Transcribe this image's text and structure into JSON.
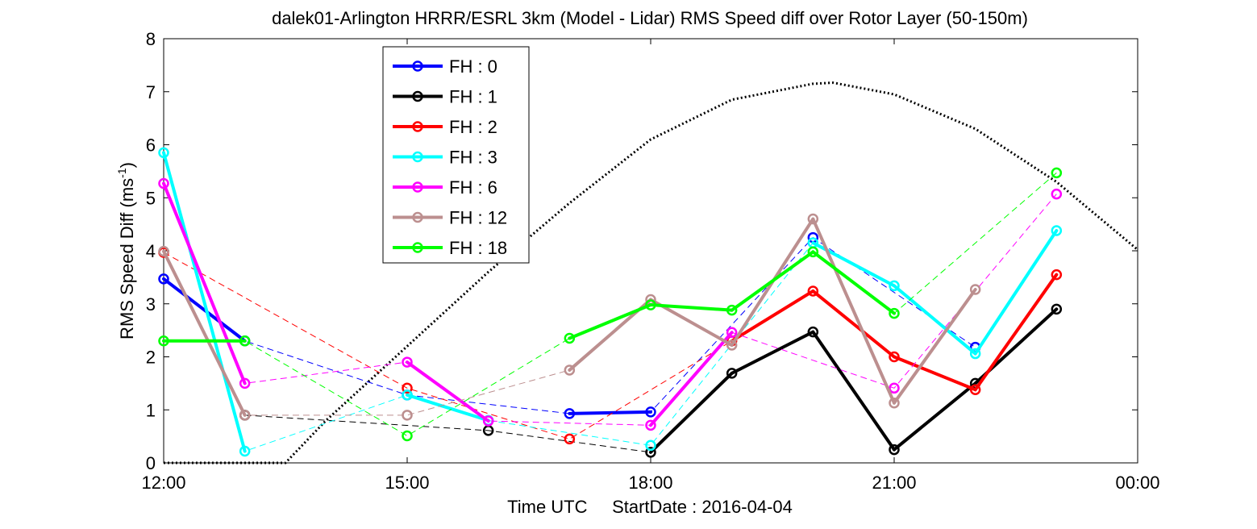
{
  "chart_data": {
    "type": "line",
    "title": "dalek01-Arlington HRRR/ESRL 3km (Model - Lidar) RMS Speed diff over Rotor Layer (50-150m)",
    "xlabel": "Time UTC     StartDate : 2016-04-04",
    "ylabel_main": "RMS Speed Diff (ms",
    "ylabel_sup": "-1",
    "ylabel_close": ")",
    "xlim_hours": [
      12,
      24
    ],
    "ylim": [
      0,
      8
    ],
    "xticks": [
      {
        "hour": 12,
        "label": "12:00"
      },
      {
        "hour": 15,
        "label": "15:00"
      },
      {
        "hour": 18,
        "label": "18:00"
      },
      {
        "hour": 21,
        "label": "21:00"
      },
      {
        "hour": 24,
        "label": "00:00"
      }
    ],
    "yticks": [
      0,
      1,
      2,
      3,
      4,
      5,
      6,
      7,
      8
    ],
    "legend_position": "top-left inside",
    "series": [
      {
        "name": "FH : 0",
        "color": "#0000ff",
        "x": [
          12,
          13,
          15,
          17,
          18,
          20,
          21,
          22
        ],
        "y": [
          3.47,
          2.3,
          1.28,
          0.93,
          0.96,
          4.25,
          null,
          2.18
        ]
      },
      {
        "name": "FH : 1",
        "color": "#000000",
        "x": [
          13,
          16,
          18,
          19,
          20,
          21,
          22,
          23
        ],
        "y": [
          0.9,
          0.61,
          0.2,
          1.69,
          2.47,
          0.25,
          1.5,
          2.9
        ]
      },
      {
        "name": "FH : 2",
        "color": "#ff0000",
        "x": [
          12,
          15,
          17,
          19,
          20,
          21,
          22,
          23
        ],
        "y": [
          3.97,
          1.41,
          0.45,
          2.3,
          3.24,
          2.0,
          1.38,
          3.55
        ]
      },
      {
        "name": "FH : 3",
        "color": "#00ffff",
        "x": [
          12,
          13,
          15,
          16,
          18,
          20,
          21,
          22,
          23
        ],
        "y": [
          5.85,
          0.22,
          1.28,
          0.8,
          0.33,
          4.15,
          3.34,
          2.06,
          4.38
        ]
      },
      {
        "name": "FH : 6",
        "color": "#ff00ff",
        "x": [
          12,
          13,
          15,
          16,
          18,
          19,
          21,
          23
        ],
        "y": [
          5.27,
          1.5,
          1.9,
          0.79,
          0.71,
          2.46,
          1.41,
          5.07
        ]
      },
      {
        "name": "FH : 12",
        "color": "#bc8f8f",
        "x": [
          12,
          13,
          15,
          17,
          18,
          19,
          20,
          21,
          22
        ],
        "y": [
          3.99,
          0.9,
          0.9,
          1.75,
          3.08,
          2.22,
          4.6,
          1.13,
          3.27
        ]
      },
      {
        "name": "FH : 18",
        "color": "#00ff00",
        "x": [
          12,
          13,
          15,
          17,
          18,
          19,
          20,
          21,
          23
        ],
        "y": [
          2.3,
          2.3,
          0.51,
          2.35,
          2.98,
          2.88,
          3.98,
          2.82,
          5.47
        ]
      }
    ],
    "reference_curve": {
      "style": "dotted",
      "color": "#000000",
      "x": [
        12.0,
        13.5,
        14,
        15,
        16,
        17,
        18,
        19,
        20,
        20.25,
        21,
        22,
        23,
        24
      ],
      "y": [
        0.0,
        0.0,
        0.8,
        2.2,
        3.6,
        4.9,
        6.1,
        6.85,
        7.15,
        7.17,
        6.95,
        6.3,
        5.3,
        4.02
      ]
    }
  }
}
